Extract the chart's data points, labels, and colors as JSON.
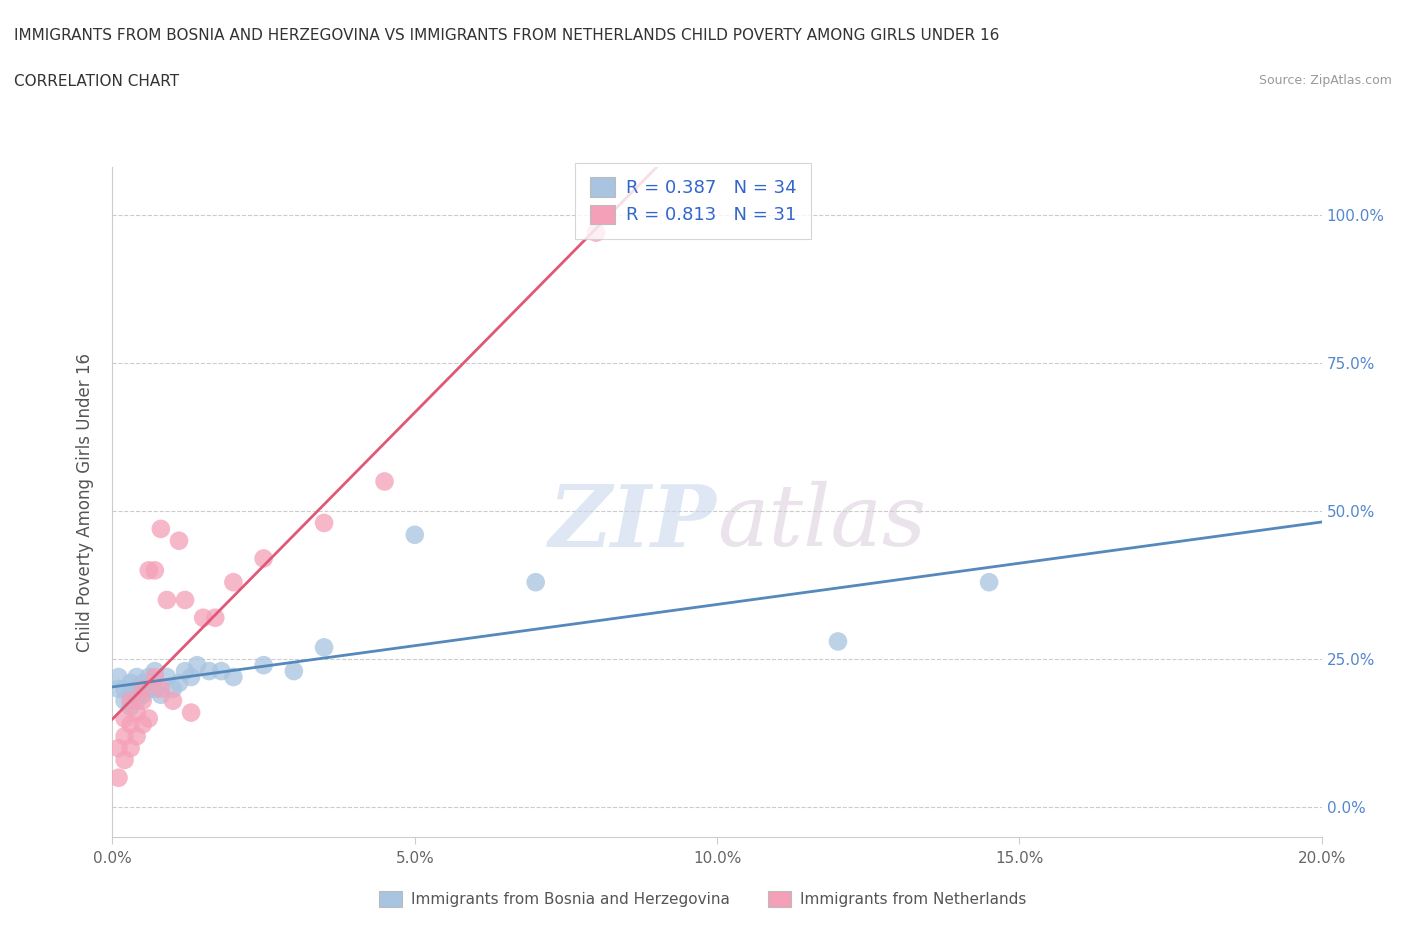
{
  "title_line1": "IMMIGRANTS FROM BOSNIA AND HERZEGOVINA VS IMMIGRANTS FROM NETHERLANDS CHILD POVERTY AMONG GIRLS UNDER 16",
  "title_line2": "CORRELATION CHART",
  "source_text": "Source: ZipAtlas.com",
  "ylabel": "Child Poverty Among Girls Under 16",
  "xlim": [
    0.0,
    0.2
  ],
  "ylim": [
    -0.05,
    1.08
  ],
  "xticks": [
    0.0,
    0.05,
    0.1,
    0.15,
    0.2
  ],
  "xtick_labels": [
    "0.0%",
    "5.0%",
    "10.0%",
    "15.0%",
    "20.0%"
  ],
  "yticks": [
    0.0,
    0.25,
    0.5,
    0.75,
    1.0
  ],
  "ytick_labels": [
    "0.0%",
    "25.0%",
    "50.0%",
    "75.0%",
    "100.0%"
  ],
  "bosnia_color": "#a8c4e0",
  "netherlands_color": "#f4a0b8",
  "bosnia_line_color": "#5588bb",
  "netherlands_line_color": "#e05878",
  "bosnia_R": 0.387,
  "bosnia_N": 34,
  "netherlands_R": 0.813,
  "netherlands_N": 31,
  "watermark_zip": "ZIP",
  "watermark_atlas": "atlas",
  "legend_bosnia_label": "Immigrants from Bosnia and Herzegovina",
  "legend_netherlands_label": "Immigrants from Netherlands",
  "bosnia_x": [
    0.001,
    0.001,
    0.002,
    0.002,
    0.003,
    0.003,
    0.003,
    0.004,
    0.004,
    0.004,
    0.005,
    0.005,
    0.005,
    0.006,
    0.006,
    0.007,
    0.007,
    0.008,
    0.009,
    0.01,
    0.011,
    0.012,
    0.013,
    0.014,
    0.016,
    0.018,
    0.02,
    0.025,
    0.03,
    0.035,
    0.05,
    0.07,
    0.12,
    0.145
  ],
  "bosnia_y": [
    0.2,
    0.22,
    0.18,
    0.2,
    0.19,
    0.21,
    0.17,
    0.2,
    0.22,
    0.18,
    0.21,
    0.19,
    0.2,
    0.22,
    0.2,
    0.23,
    0.2,
    0.19,
    0.22,
    0.2,
    0.21,
    0.23,
    0.22,
    0.24,
    0.23,
    0.23,
    0.22,
    0.24,
    0.23,
    0.27,
    0.46,
    0.38,
    0.28,
    0.38
  ],
  "netherlands_x": [
    0.001,
    0.001,
    0.002,
    0.002,
    0.002,
    0.003,
    0.003,
    0.003,
    0.004,
    0.004,
    0.005,
    0.005,
    0.005,
    0.006,
    0.006,
    0.007,
    0.007,
    0.008,
    0.008,
    0.009,
    0.01,
    0.011,
    0.012,
    0.013,
    0.015,
    0.017,
    0.02,
    0.025,
    0.035,
    0.045,
    0.08
  ],
  "netherlands_y": [
    0.05,
    0.1,
    0.08,
    0.12,
    0.15,
    0.1,
    0.14,
    0.18,
    0.12,
    0.16,
    0.14,
    0.18,
    0.2,
    0.15,
    0.4,
    0.22,
    0.4,
    0.2,
    0.47,
    0.35,
    0.18,
    0.45,
    0.35,
    0.16,
    0.32,
    0.32,
    0.38,
    0.42,
    0.48,
    0.55,
    0.97
  ]
}
